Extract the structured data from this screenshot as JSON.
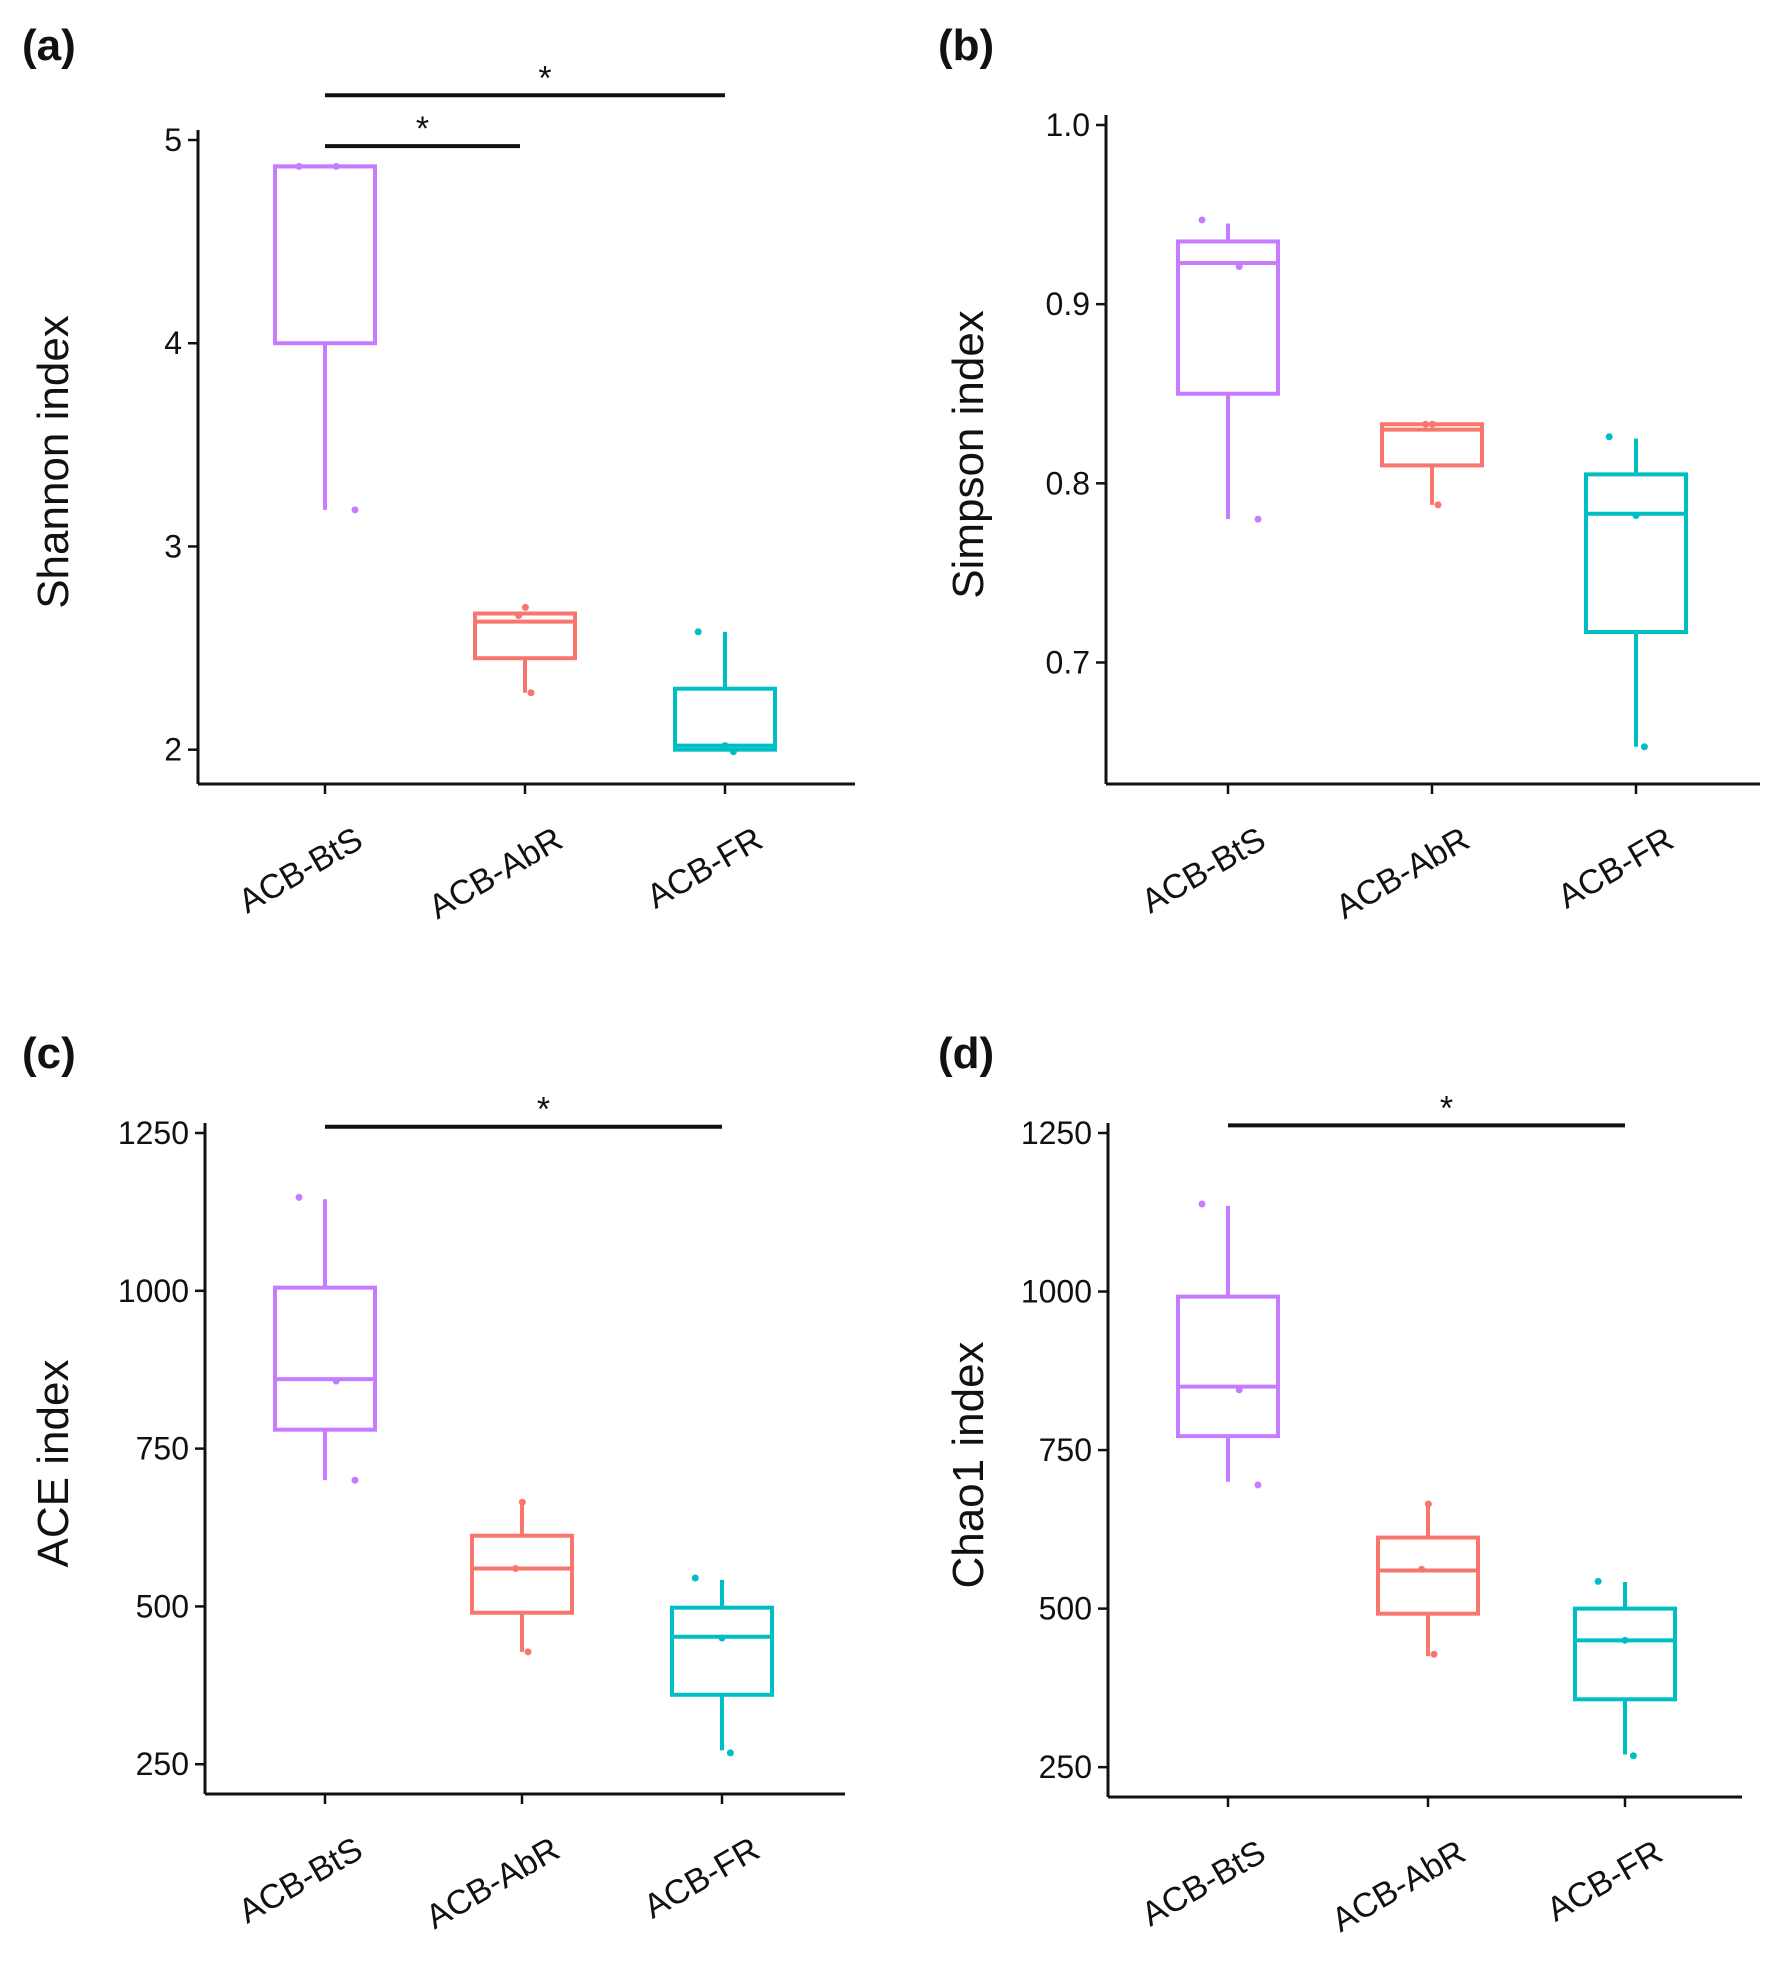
{
  "colors": {
    "ACB-BtS": "#c77cff",
    "ACB-AbR": "#f8766d",
    "ACB-FR": "#00bfc4"
  },
  "chart_data": [
    {
      "type": "box",
      "panel": "(a)",
      "ylabel": "Shannon index",
      "ylim": [
        1.9,
        5.0
      ],
      "yticks": [
        2,
        3,
        4,
        5
      ],
      "yticklabels": [
        "2",
        "3",
        "4",
        "5"
      ],
      "categories": [
        "ACB-BtS",
        "ACB-AbR",
        "ACB-FR"
      ],
      "boxes": [
        {
          "q1": 4.0,
          "median": 4.87,
          "q3": 4.87,
          "whislo": 3.18,
          "whishi": 4.87
        },
        {
          "q1": 2.45,
          "median": 2.63,
          "q3": 2.67,
          "whislo": 2.28,
          "whishi": 2.67
        },
        {
          "q1": 2.0,
          "median": 2.02,
          "q3": 2.3,
          "whislo": 2.0,
          "whishi": 2.58
        }
      ],
      "points": [
        [
          4.87,
          4.87,
          3.18
        ],
        [
          2.7,
          2.66,
          2.28
        ],
        [
          2.58,
          2.02,
          1.99
        ]
      ],
      "significance": [
        {
          "from": 0,
          "to": 1,
          "y": 4.97,
          "label": "*"
        },
        {
          "from": 0,
          "to": 2,
          "y": 5.22,
          "label": "*"
        }
      ]
    },
    {
      "type": "box",
      "panel": "(b)",
      "ylabel": "Simpson index",
      "ylim": [
        0.64,
        1.0
      ],
      "yticks": [
        0.7,
        0.8,
        0.9,
        1.0
      ],
      "yticklabels": [
        "0.7",
        "0.8",
        "0.9",
        "1.0"
      ],
      "categories": [
        "ACB-BtS",
        "ACB-AbR",
        "ACB-FR"
      ],
      "boxes": [
        {
          "q1": 0.85,
          "median": 0.923,
          "q3": 0.935,
          "whislo": 0.78,
          "whishi": 0.945
        },
        {
          "q1": 0.81,
          "median": 0.83,
          "q3": 0.833,
          "whislo": 0.788,
          "whishi": 0.833
        },
        {
          "q1": 0.717,
          "median": 0.783,
          "q3": 0.805,
          "whislo": 0.653,
          "whishi": 0.825
        }
      ],
      "points": [
        [
          0.947,
          0.921,
          0.78
        ],
        [
          0.833,
          0.833,
          0.788
        ],
        [
          0.826,
          0.782,
          0.653
        ]
      ],
      "significance": []
    },
    {
      "type": "box",
      "panel": "(c)",
      "ylabel": "ACE index",
      "ylim": [
        225,
        1250
      ],
      "yticks": [
        250,
        500,
        750,
        1000,
        1250
      ],
      "yticklabels": [
        "250",
        "500",
        "750",
        "1000",
        "1250"
      ],
      "categories": [
        "ACB-BtS",
        "ACB-AbR",
        "ACB-FR"
      ],
      "boxes": [
        {
          "q1": 780,
          "median": 860,
          "q3": 1005,
          "whislo": 700,
          "whishi": 1145
        },
        {
          "q1": 490,
          "median": 560,
          "q3": 612,
          "whislo": 428,
          "whishi": 665
        },
        {
          "q1": 360,
          "median": 452,
          "q3": 498,
          "whislo": 272,
          "whishi": 542
        }
      ],
      "points": [
        [
          1148,
          857,
          700
        ],
        [
          665,
          560,
          428
        ],
        [
          545,
          450,
          268
        ]
      ],
      "significance": [
        {
          "from": 0,
          "to": 2,
          "y": 1260,
          "label": "*"
        }
      ]
    },
    {
      "type": "box",
      "panel": "(d)",
      "ylabel": "Chao1 index",
      "ylim": [
        225,
        1250
      ],
      "yticks": [
        250,
        500,
        750,
        1000,
        1250
      ],
      "yticklabels": [
        "250",
        "500",
        "750",
        "1000",
        "1250"
      ],
      "categories": [
        "ACB-BtS",
        "ACB-AbR",
        "ACB-FR"
      ],
      "boxes": [
        {
          "q1": 772,
          "median": 850,
          "q3": 992,
          "whislo": 700,
          "whishi": 1135
        },
        {
          "q1": 492,
          "median": 560,
          "q3": 612,
          "whislo": 425,
          "whishi": 662
        },
        {
          "q1": 357,
          "median": 450,
          "q3": 500,
          "whislo": 270,
          "whishi": 542
        }
      ],
      "points": [
        [
          1138,
          845,
          695
        ],
        [
          665,
          562,
          428
        ],
        [
          543,
          450,
          268
        ]
      ],
      "significance": [
        {
          "from": 0,
          "to": 2,
          "y": 1262,
          "label": "*"
        }
      ]
    }
  ]
}
